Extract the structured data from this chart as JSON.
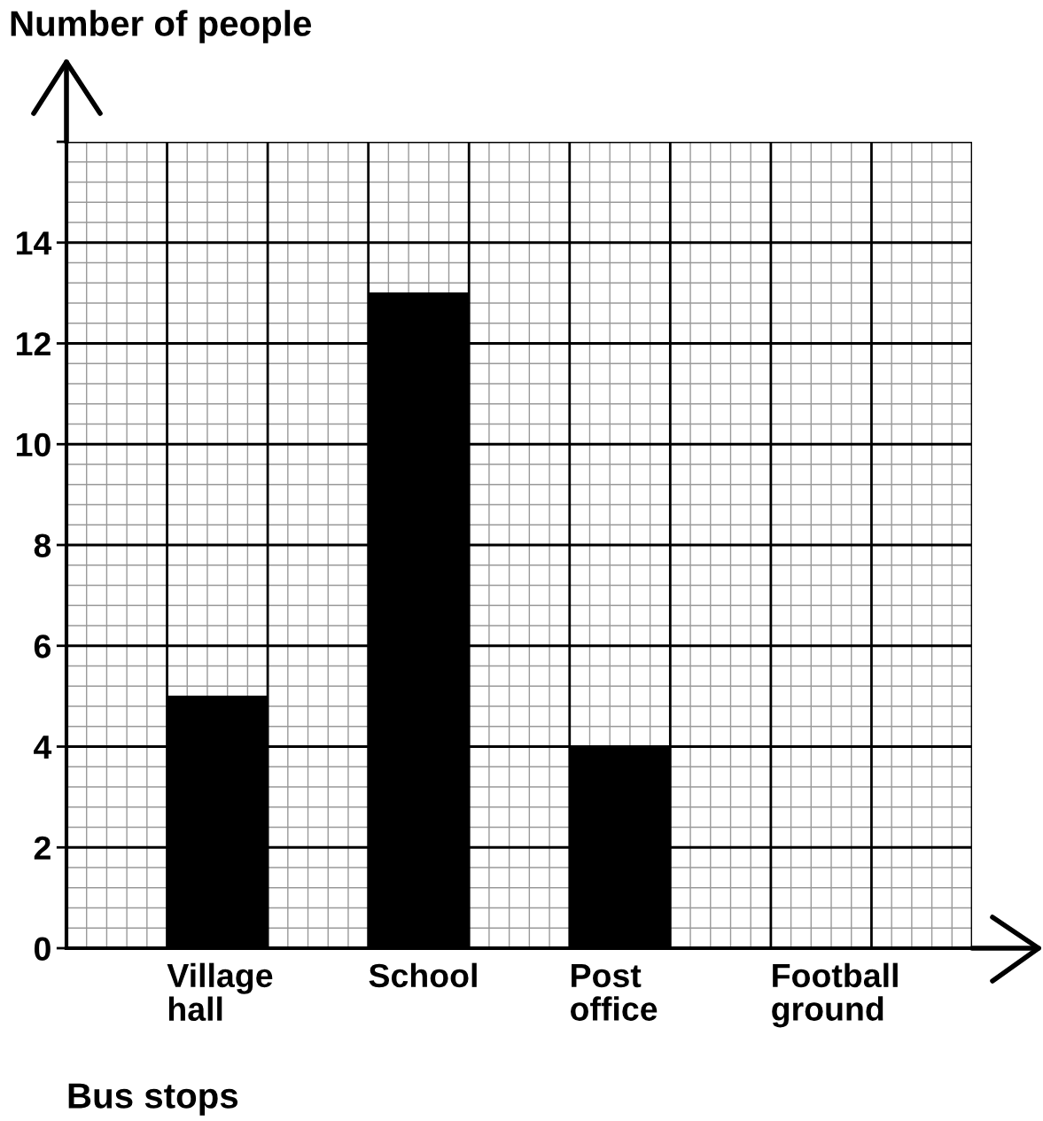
{
  "chart_data": {
    "type": "bar",
    "xlabel": "Bus stops",
    "ylabel": "Number of people",
    "categories": [
      "Village hall",
      "School",
      "Post office",
      "Football ground"
    ],
    "values": [
      5,
      13,
      4,
      null
    ],
    "color": "#000000",
    "ylim": [
      0,
      16
    ],
    "yticks": [
      0,
      2,
      4,
      6,
      8,
      10,
      12,
      14,
      {
        "value": 16,
        "label": null
      }
    ],
    "grid": true
  }
}
